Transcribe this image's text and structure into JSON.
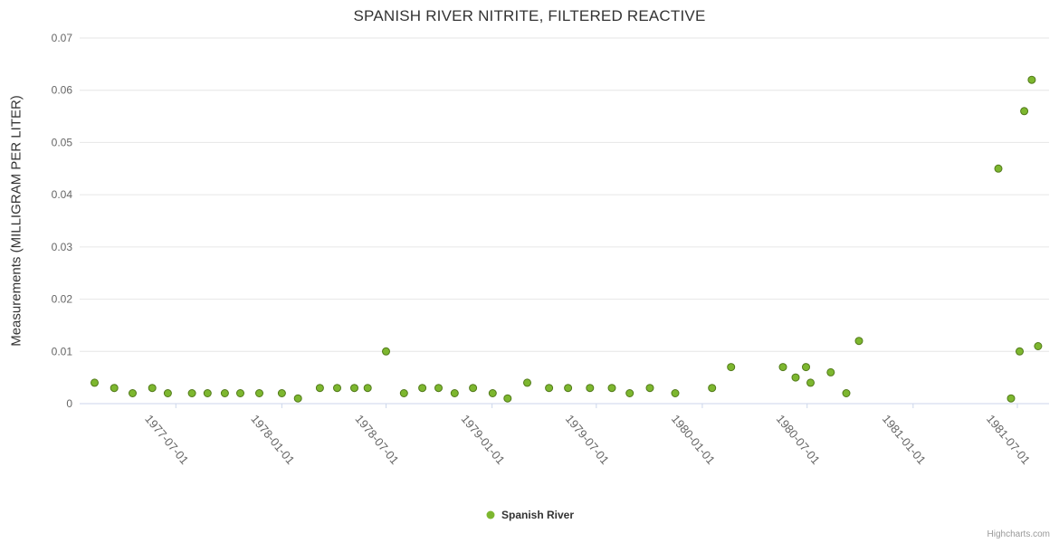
{
  "chart_data": {
    "type": "scatter",
    "title": "SPANISH RIVER NITRITE, FILTERED REACTIVE",
    "xlabel": "",
    "ylabel": "Measurements (MILLIGRAM PER LITER)",
    "ylim": [
      0,
      0.07
    ],
    "xlim": [
      "1977-01-15",
      "1981-08-25"
    ],
    "grid": "horizontal",
    "legend_position": "bottom-center",
    "yticks": [
      {
        "value": 0,
        "label": "0"
      },
      {
        "value": 0.01,
        "label": "0.01"
      },
      {
        "value": 0.02,
        "label": "0.02"
      },
      {
        "value": 0.03,
        "label": "0.03"
      },
      {
        "value": 0.04,
        "label": "0.04"
      },
      {
        "value": 0.05,
        "label": "0.05"
      },
      {
        "value": 0.06,
        "label": "0.06"
      },
      {
        "value": 0.07,
        "label": "0.07"
      }
    ],
    "xticks": [
      {
        "value": "1977-07-01",
        "label": "1977-07-01"
      },
      {
        "value": "1978-01-01",
        "label": "1978-01-01"
      },
      {
        "value": "1978-07-01",
        "label": "1978-07-01"
      },
      {
        "value": "1979-01-01",
        "label": "1979-01-01"
      },
      {
        "value": "1979-07-01",
        "label": "1979-07-01"
      },
      {
        "value": "1980-01-01",
        "label": "1980-01-01"
      },
      {
        "value": "1980-07-01",
        "label": "1980-07-01"
      },
      {
        "value": "1981-01-01",
        "label": "1981-01-01"
      },
      {
        "value": "1981-07-01",
        "label": "1981-07-01"
      }
    ],
    "series": [
      {
        "name": "Spanish River",
        "color": "#7db72f",
        "marker_stroke": "#527a1a",
        "points": [
          [
            "1977-02-10",
            0.004
          ],
          [
            "1977-03-16",
            0.003
          ],
          [
            "1977-04-17",
            0.002
          ],
          [
            "1977-05-21",
            0.003
          ],
          [
            "1977-06-17",
            0.002
          ],
          [
            "1977-07-29",
            0.002
          ],
          [
            "1977-08-25",
            0.002
          ],
          [
            "1977-09-24",
            0.002
          ],
          [
            "1977-10-21",
            0.002
          ],
          [
            "1977-11-23",
            0.002
          ],
          [
            "1978-01-01",
            0.002
          ],
          [
            "1978-01-29",
            0.001
          ],
          [
            "1978-03-08",
            0.003
          ],
          [
            "1978-04-07",
            0.003
          ],
          [
            "1978-05-07",
            0.003
          ],
          [
            "1978-05-30",
            0.003
          ],
          [
            "1978-07-01",
            0.01
          ],
          [
            "1978-08-01",
            0.002
          ],
          [
            "1978-09-02",
            0.003
          ],
          [
            "1978-09-30",
            0.003
          ],
          [
            "1978-10-28",
            0.002
          ],
          [
            "1978-11-29",
            0.003
          ],
          [
            "1979-01-02",
            0.002
          ],
          [
            "1979-01-28",
            0.001
          ],
          [
            "1979-03-03",
            0.004
          ],
          [
            "1979-04-10",
            0.003
          ],
          [
            "1979-05-13",
            0.003
          ],
          [
            "1979-06-20",
            0.003
          ],
          [
            "1979-07-28",
            0.003
          ],
          [
            "1979-08-28",
            0.002
          ],
          [
            "1979-10-02",
            0.003
          ],
          [
            "1979-11-15",
            0.002
          ],
          [
            "1980-01-18",
            0.003
          ],
          [
            "1980-02-20",
            0.007
          ],
          [
            "1980-05-20",
            0.007
          ],
          [
            "1980-06-11",
            0.005
          ],
          [
            "1980-06-29",
            0.007
          ],
          [
            "1980-07-07",
            0.004
          ],
          [
            "1980-08-11",
            0.006
          ],
          [
            "1980-09-07",
            0.002
          ],
          [
            "1980-09-29",
            0.012
          ],
          [
            "1981-05-29",
            0.045
          ],
          [
            "1981-06-20",
            0.001
          ],
          [
            "1981-07-05",
            0.01
          ],
          [
            "1981-07-13",
            0.056
          ],
          [
            "1981-07-26",
            0.062
          ],
          [
            "1981-08-06",
            0.011
          ]
        ]
      }
    ]
  },
  "credits": "Highcharts.com",
  "colors": {
    "grid": "#e6e6e6",
    "axis_line": "#ccd6eb",
    "tick_label": "#666666",
    "title_text": "#333333"
  }
}
